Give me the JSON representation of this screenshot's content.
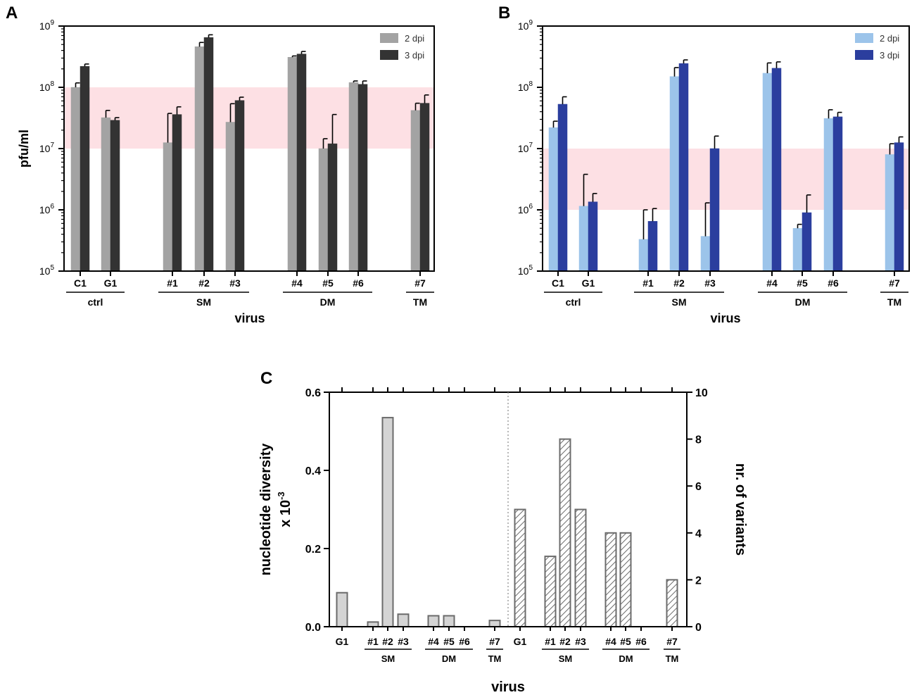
{
  "figure": {
    "panels": [
      "A",
      "B",
      "C"
    ]
  },
  "chart_data": [
    {
      "id": "A",
      "type": "bar",
      "panel_label": "A",
      "title": "",
      "xlabel": "virus",
      "ylabel": "pfu/ml",
      "yscale": "log",
      "ylim": [
        100000,
        1000000000
      ],
      "y_ticks": [
        "5",
        "6",
        "7",
        "8",
        "9"
      ],
      "y_tick_base": "10",
      "shaded_band": [
        10000000,
        100000000
      ],
      "band_color": "#fde0e4",
      "categories": [
        "C1",
        "G1",
        "#1",
        "#2",
        "#3",
        "#4",
        "#5",
        "#6",
        "#7"
      ],
      "groups": [
        {
          "label": "ctrl",
          "members": [
            "C1",
            "G1"
          ]
        },
        {
          "label": "SM",
          "members": [
            "#1",
            "#2",
            "#3"
          ]
        },
        {
          "label": "DM",
          "members": [
            "#4",
            "#5",
            "#6"
          ]
        },
        {
          "label": "TM",
          "members": [
            "#7"
          ]
        }
      ],
      "series": [
        {
          "name": "2 dpi",
          "color": "#a3a3a3",
          "values": [
            100000000,
            32000000,
            12500000,
            460000000,
            27000000,
            310000000,
            10000000,
            120000000,
            42000000
          ],
          "err": [
            18000000,
            10000000,
            25000000,
            80000000,
            27000000,
            15000000,
            4500000,
            7000000,
            13000000
          ]
        },
        {
          "name": "3 dpi",
          "color": "#333333",
          "values": [
            220000000,
            29000000,
            36000000,
            650000000,
            61000000,
            350000000,
            12000000,
            112000000,
            55000000
          ],
          "err": [
            20000000,
            3000000,
            12000000,
            70000000,
            8000000,
            35000000,
            24000000,
            15000000,
            20000000
          ]
        }
      ],
      "legend": "top-right"
    },
    {
      "id": "B",
      "type": "bar",
      "panel_label": "B",
      "title": "",
      "xlabel": "virus",
      "ylabel": "",
      "yscale": "log",
      "ylim": [
        100000,
        1000000000
      ],
      "y_ticks": [
        "5",
        "6",
        "7",
        "8",
        "9"
      ],
      "y_tick_base": "10",
      "shaded_band": [
        1000000,
        10000000
      ],
      "band_color": "#fde0e4",
      "categories": [
        "C1",
        "G1",
        "#1",
        "#2",
        "#3",
        "#4",
        "#5",
        "#6",
        "#7"
      ],
      "groups": [
        {
          "label": "ctrl",
          "members": [
            "C1",
            "G1"
          ]
        },
        {
          "label": "SM",
          "members": [
            "#1",
            "#2",
            "#3"
          ]
        },
        {
          "label": "DM",
          "members": [
            "#4",
            "#5",
            "#6"
          ]
        },
        {
          "label": "TM",
          "members": [
            "#7"
          ]
        }
      ],
      "series": [
        {
          "name": "2 dpi",
          "color": "#9cc4ea",
          "values": [
            22000000,
            1150000,
            330000,
            150000000,
            370000,
            170000000,
            500000,
            31000000,
            8000000
          ],
          "err": [
            6000000,
            2650000,
            670000,
            60000000,
            930000,
            80000000,
            80000,
            12000000,
            4000000
          ]
        },
        {
          "name": "3 dpi",
          "color": "#2b3e9e",
          "values": [
            53000000,
            1350000,
            650000,
            245000000,
            10000000,
            205000000,
            900000,
            33000000,
            12500000
          ],
          "err": [
            17000000,
            500000,
            400000,
            35000000,
            6000000,
            55000000,
            850000,
            6000000,
            3000000
          ]
        }
      ],
      "legend": "top-right"
    },
    {
      "id": "C",
      "type": "bar",
      "panel_label": "C",
      "title": "",
      "xlabel": "virus",
      "ylabel_left": "nucleotide diversity",
      "ylabel_left_line2_base": "x 10",
      "ylabel_left_line2_exp": "-3",
      "ylabel_right": "nr. of variants",
      "ylim_left": [
        0,
        0.6
      ],
      "ylim_right": [
        0,
        10
      ],
      "left_ticks": [
        "0.0",
        "0.2",
        "0.4",
        "0.6"
      ],
      "right_ticks": [
        "0",
        "2",
        "4",
        "6",
        "8",
        "10"
      ],
      "left_series": {
        "name": "nucleotide diversity",
        "categories": [
          "G1",
          "#1",
          "#2",
          "#3",
          "#4",
          "#5",
          "#6",
          "#7"
        ],
        "values": [
          0.087,
          0.012,
          0.535,
          0.032,
          0.028,
          0.028,
          0.0,
          0.016
        ],
        "fill": "#d4d4d4"
      },
      "right_series": {
        "name": "nr. of variants",
        "categories": [
          "G1",
          "#1",
          "#2",
          "#3",
          "#4",
          "#5",
          "#6",
          "#7"
        ],
        "values": [
          5,
          3,
          8,
          5,
          4,
          4,
          0,
          2
        ],
        "fill": "hatched"
      },
      "groups": [
        {
          "label": "SM",
          "members": [
            "#1",
            "#2",
            "#3"
          ]
        },
        {
          "label": "DM",
          "members": [
            "#4",
            "#5",
            "#6"
          ]
        },
        {
          "label": "TM",
          "members": [
            "#7"
          ]
        }
      ]
    }
  ]
}
